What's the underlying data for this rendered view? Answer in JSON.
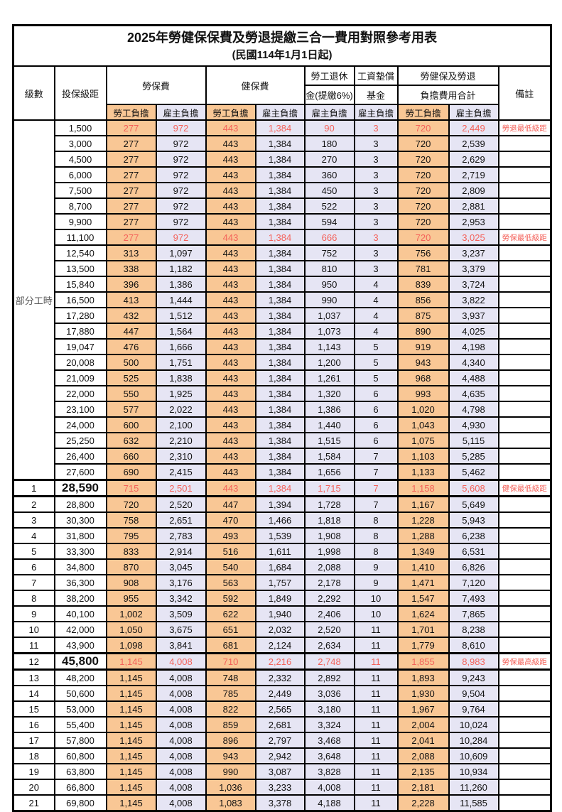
{
  "title": "2025年勞健保保費及勞退提繳三合一費用對照參考用表",
  "subtitle": "(民國114年1月1日起)",
  "header": {
    "level": "級數",
    "bracket": "投保級距",
    "labor_ins": "勞保費",
    "health_ins": "健保費",
    "pension_line1": "勞工退休",
    "pension_line2": "金(提繳6%)",
    "wage_fund_line1": "工資墊償",
    "wage_fund_line2": "基金",
    "total_line1": "勞健保及勞退",
    "total_line2": "負擔費用合計",
    "note": "備註",
    "employee": "勞工負擔",
    "employer": "雇主負擔"
  },
  "part_time_label": "部分工時",
  "colors": {
    "employee_bg": "#f9c795",
    "employer_bg": "#e6e5f4",
    "highlight_red": "#f4625a",
    "border": "#000000"
  },
  "rows": [
    {
      "lv": "",
      "br": "1,500",
      "v": [
        "277",
        "972",
        "443",
        "1,384",
        "90",
        "3",
        "720",
        "2,449"
      ],
      "note": "勞退最低級距",
      "hl": true
    },
    {
      "lv": "",
      "br": "3,000",
      "v": [
        "277",
        "972",
        "443",
        "1,384",
        "180",
        "3",
        "720",
        "2,539"
      ]
    },
    {
      "lv": "",
      "br": "4,500",
      "v": [
        "277",
        "972",
        "443",
        "1,384",
        "270",
        "3",
        "720",
        "2,629"
      ]
    },
    {
      "lv": "",
      "br": "6,000",
      "v": [
        "277",
        "972",
        "443",
        "1,384",
        "360",
        "3",
        "720",
        "2,719"
      ]
    },
    {
      "lv": "",
      "br": "7,500",
      "v": [
        "277",
        "972",
        "443",
        "1,384",
        "450",
        "3",
        "720",
        "2,809"
      ]
    },
    {
      "lv": "",
      "br": "8,700",
      "v": [
        "277",
        "972",
        "443",
        "1,384",
        "522",
        "3",
        "720",
        "2,881"
      ]
    },
    {
      "lv": "",
      "br": "9,900",
      "v": [
        "277",
        "972",
        "443",
        "1,384",
        "594",
        "3",
        "720",
        "2,953"
      ]
    },
    {
      "lv": "",
      "br": "11,100",
      "v": [
        "277",
        "972",
        "443",
        "1,384",
        "666",
        "3",
        "720",
        "3,025"
      ],
      "note": "勞保最低級距",
      "hl": true
    },
    {
      "lv": "",
      "br": "12,540",
      "v": [
        "313",
        "1,097",
        "443",
        "1,384",
        "752",
        "3",
        "756",
        "3,237"
      ]
    },
    {
      "lv": "",
      "br": "13,500",
      "v": [
        "338",
        "1,182",
        "443",
        "1,384",
        "810",
        "3",
        "781",
        "3,379"
      ]
    },
    {
      "lv": "",
      "br": "15,840",
      "v": [
        "396",
        "1,386",
        "443",
        "1,384",
        "950",
        "4",
        "839",
        "3,724"
      ]
    },
    {
      "lv": "",
      "br": "16,500",
      "v": [
        "413",
        "1,444",
        "443",
        "1,384",
        "990",
        "4",
        "856",
        "3,822"
      ]
    },
    {
      "lv": "",
      "br": "17,280",
      "v": [
        "432",
        "1,512",
        "443",
        "1,384",
        "1,037",
        "4",
        "875",
        "3,937"
      ]
    },
    {
      "lv": "",
      "br": "17,880",
      "v": [
        "447",
        "1,564",
        "443",
        "1,384",
        "1,073",
        "4",
        "890",
        "4,025"
      ]
    },
    {
      "lv": "",
      "br": "19,047",
      "v": [
        "476",
        "1,666",
        "443",
        "1,384",
        "1,143",
        "5",
        "919",
        "4,198"
      ]
    },
    {
      "lv": "",
      "br": "20,008",
      "v": [
        "500",
        "1,751",
        "443",
        "1,384",
        "1,200",
        "5",
        "943",
        "4,340"
      ]
    },
    {
      "lv": "",
      "br": "21,009",
      "v": [
        "525",
        "1,838",
        "443",
        "1,384",
        "1,261",
        "5",
        "968",
        "4,488"
      ]
    },
    {
      "lv": "",
      "br": "22,000",
      "v": [
        "550",
        "1,925",
        "443",
        "1,384",
        "1,320",
        "6",
        "993",
        "4,635"
      ]
    },
    {
      "lv": "",
      "br": "23,100",
      "v": [
        "577",
        "2,022",
        "443",
        "1,384",
        "1,386",
        "6",
        "1,020",
        "4,798"
      ]
    },
    {
      "lv": "",
      "br": "24,000",
      "v": [
        "600",
        "2,100",
        "443",
        "1,384",
        "1,440",
        "6",
        "1,043",
        "4,930"
      ]
    },
    {
      "lv": "",
      "br": "25,250",
      "v": [
        "632",
        "2,210",
        "443",
        "1,384",
        "1,515",
        "6",
        "1,075",
        "5,115"
      ]
    },
    {
      "lv": "",
      "br": "26,400",
      "v": [
        "660",
        "2,310",
        "443",
        "1,384",
        "1,584",
        "7",
        "1,103",
        "5,285"
      ]
    },
    {
      "lv": "",
      "br": "27,600",
      "v": [
        "690",
        "2,415",
        "443",
        "1,384",
        "1,656",
        "7",
        "1,133",
        "5,462"
      ]
    },
    {
      "lv": "1",
      "br": "28,590",
      "v": [
        "715",
        "2,501",
        "443",
        "1,384",
        "1,715",
        "7",
        "1,158",
        "5,608"
      ],
      "note": "健保最低級距",
      "hl": true,
      "big": true
    },
    {
      "lv": "2",
      "br": "28,800",
      "v": [
        "720",
        "2,520",
        "447",
        "1,394",
        "1,728",
        "7",
        "1,167",
        "5,649"
      ]
    },
    {
      "lv": "3",
      "br": "30,300",
      "v": [
        "758",
        "2,651",
        "470",
        "1,466",
        "1,818",
        "8",
        "1,228",
        "5,943"
      ]
    },
    {
      "lv": "4",
      "br": "31,800",
      "v": [
        "795",
        "2,783",
        "493",
        "1,539",
        "1,908",
        "8",
        "1,288",
        "6,238"
      ]
    },
    {
      "lv": "5",
      "br": "33,300",
      "v": [
        "833",
        "2,914",
        "516",
        "1,611",
        "1,998",
        "8",
        "1,349",
        "6,531"
      ]
    },
    {
      "lv": "6",
      "br": "34,800",
      "v": [
        "870",
        "3,045",
        "540",
        "1,684",
        "2,088",
        "9",
        "1,410",
        "6,826"
      ]
    },
    {
      "lv": "7",
      "br": "36,300",
      "v": [
        "908",
        "3,176",
        "563",
        "1,757",
        "2,178",
        "9",
        "1,471",
        "7,120"
      ]
    },
    {
      "lv": "8",
      "br": "38,200",
      "v": [
        "955",
        "3,342",
        "592",
        "1,849",
        "2,292",
        "10",
        "1,547",
        "7,493"
      ]
    },
    {
      "lv": "9",
      "br": "40,100",
      "v": [
        "1,002",
        "3,509",
        "622",
        "1,940",
        "2,406",
        "10",
        "1,624",
        "7,865"
      ]
    },
    {
      "lv": "10",
      "br": "42,000",
      "v": [
        "1,050",
        "3,675",
        "651",
        "2,032",
        "2,520",
        "11",
        "1,701",
        "8,238"
      ]
    },
    {
      "lv": "11",
      "br": "43,900",
      "v": [
        "1,098",
        "3,841",
        "681",
        "2,124",
        "2,634",
        "11",
        "1,779",
        "8,610"
      ]
    },
    {
      "lv": "12",
      "br": "45,800",
      "v": [
        "1,145",
        "4,008",
        "710",
        "2,216",
        "2,748",
        "11",
        "1,855",
        "8,983"
      ],
      "note": "勞保最高級距",
      "hl": true,
      "big": true
    },
    {
      "lv": "13",
      "br": "48,200",
      "v": [
        "1,145",
        "4,008",
        "748",
        "2,332",
        "2,892",
        "11",
        "1,893",
        "9,243"
      ]
    },
    {
      "lv": "14",
      "br": "50,600",
      "v": [
        "1,145",
        "4,008",
        "785",
        "2,449",
        "3,036",
        "11",
        "1,930",
        "9,504"
      ]
    },
    {
      "lv": "15",
      "br": "53,000",
      "v": [
        "1,145",
        "4,008",
        "822",
        "2,565",
        "3,180",
        "11",
        "1,967",
        "9,764"
      ]
    },
    {
      "lv": "16",
      "br": "55,400",
      "v": [
        "1,145",
        "4,008",
        "859",
        "2,681",
        "3,324",
        "11",
        "2,004",
        "10,024"
      ]
    },
    {
      "lv": "17",
      "br": "57,800",
      "v": [
        "1,145",
        "4,008",
        "896",
        "2,797",
        "3,468",
        "11",
        "2,041",
        "10,284"
      ]
    },
    {
      "lv": "18",
      "br": "60,800",
      "v": [
        "1,145",
        "4,008",
        "943",
        "2,942",
        "3,648",
        "11",
        "2,088",
        "10,609"
      ]
    },
    {
      "lv": "19",
      "br": "63,800",
      "v": [
        "1,145",
        "4,008",
        "990",
        "3,087",
        "3,828",
        "11",
        "2,135",
        "10,934"
      ]
    },
    {
      "lv": "20",
      "br": "66,800",
      "v": [
        "1,145",
        "4,008",
        "1,036",
        "3,233",
        "4,008",
        "11",
        "2,181",
        "11,260"
      ]
    },
    {
      "lv": "21",
      "br": "69,800",
      "v": [
        "1,145",
        "4,008",
        "1,083",
        "3,378",
        "4,188",
        "11",
        "2,228",
        "11,585"
      ]
    }
  ]
}
